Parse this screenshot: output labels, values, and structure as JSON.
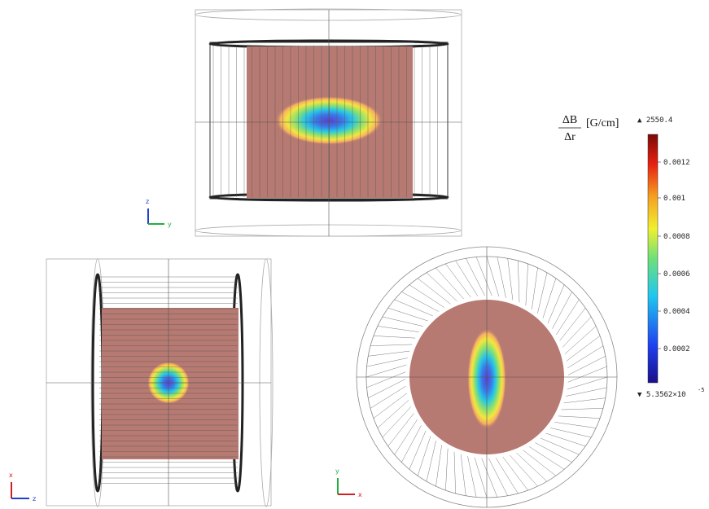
{
  "colorbar": {
    "numerator": "ΔB",
    "denominator": "Δr",
    "unit": "[G/cm]",
    "max_label": "▲ 2550.4",
    "min_label": "▼ 5.3562×10",
    "min_exponent": "-5",
    "ticks": [
      "0.0012",
      "0.001",
      "0.0008",
      "0.0006",
      "0.0004",
      "0.0002"
    ]
  },
  "views": [
    {
      "axes": [
        "z",
        "y"
      ]
    },
    {
      "axes": [
        "x",
        "z"
      ]
    },
    {
      "axes": [
        "y",
        "x"
      ]
    }
  ]
}
